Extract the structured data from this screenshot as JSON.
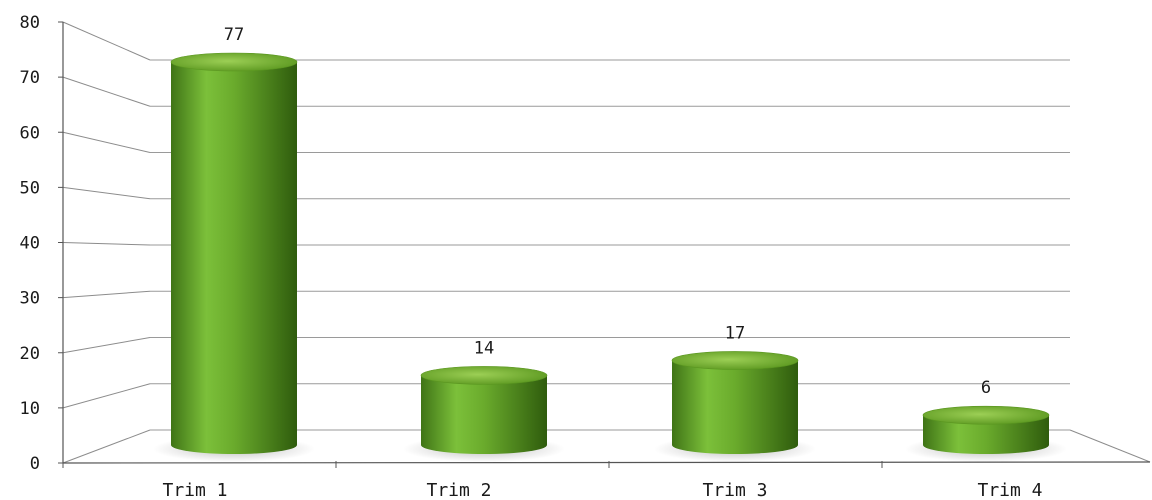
{
  "chart_data": {
    "type": "bar",
    "categories": [
      "Trim 1",
      "Trim 2",
      "Trim 3",
      "Trim 4"
    ],
    "values": [
      77,
      14,
      17,
      6
    ],
    "data_labels": [
      "77",
      "14",
      "17",
      "6"
    ],
    "title": "",
    "xlabel": "",
    "ylabel": "",
    "ylim": [
      0,
      80
    ],
    "yticks": [
      "0",
      "10",
      "20",
      "30",
      "40",
      "50",
      "60",
      "70",
      "80"
    ],
    "grid": true,
    "legend": "none",
    "style": "3d-cylinder",
    "bar_color": "#6aa72a"
  }
}
